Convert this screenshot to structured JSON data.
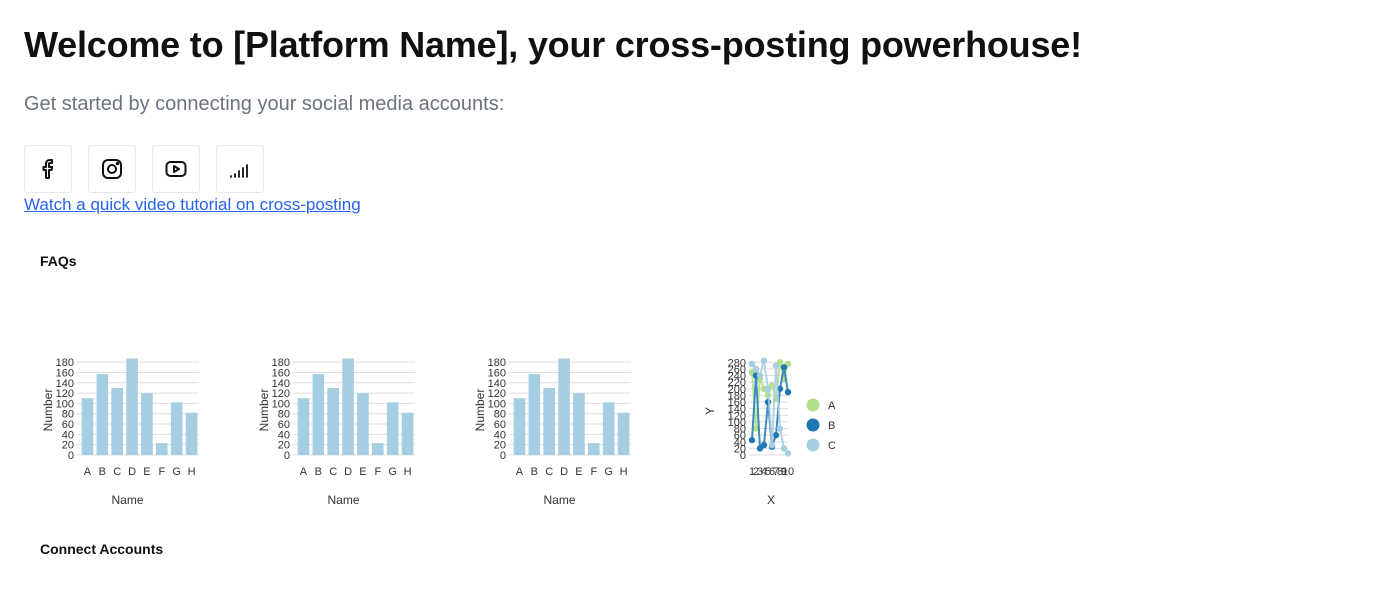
{
  "header": {
    "title": "Welcome to [Platform Name], your cross-posting powerhouse!",
    "subtitle": "Get started by connecting your social media accounts:"
  },
  "socials": [
    {
      "icon": "facebook-icon"
    },
    {
      "icon": "instagram-icon"
    },
    {
      "icon": "youtube-icon"
    },
    {
      "icon": "signal-icon"
    }
  ],
  "tutorial_link": "Watch a quick video tutorial on cross-posting",
  "sections": {
    "faqs": "FAQs",
    "connect": "Connect Accounts"
  },
  "colors": {
    "bar": "#a6cee3",
    "series_a": "#b2df8a",
    "series_b": "#1f78b4",
    "series_c": "#a6cee3"
  },
  "chart_data": [
    {
      "type": "bar",
      "categories": [
        "A",
        "B",
        "C",
        "D",
        "E",
        "F",
        "G",
        "H"
      ],
      "values": [
        110,
        157,
        130,
        187,
        120,
        23,
        102,
        82
      ],
      "xlabel": "Name",
      "ylabel": "Number",
      "yticks": [
        0,
        20,
        40,
        60,
        80,
        100,
        120,
        140,
        160,
        180
      ],
      "ylim": [
        0,
        190
      ],
      "grid": true
    },
    {
      "type": "bar",
      "categories": [
        "A",
        "B",
        "C",
        "D",
        "E",
        "F",
        "G",
        "H"
      ],
      "values": [
        110,
        157,
        130,
        187,
        120,
        23,
        102,
        82
      ],
      "xlabel": "Name",
      "ylabel": "Number",
      "yticks": [
        0,
        20,
        40,
        60,
        80,
        100,
        120,
        140,
        160,
        180
      ],
      "ylim": [
        0,
        190
      ],
      "grid": true
    },
    {
      "type": "bar",
      "categories": [
        "A",
        "B",
        "C",
        "D",
        "E",
        "F",
        "G",
        "H"
      ],
      "values": [
        110,
        157,
        130,
        187,
        120,
        23,
        102,
        82
      ],
      "xlabel": "Name",
      "ylabel": "Number",
      "yticks": [
        0,
        20,
        40,
        60,
        80,
        100,
        120,
        140,
        160,
        180
      ],
      "ylim": [
        0,
        190
      ],
      "grid": true
    },
    {
      "type": "line",
      "xlabel": "X",
      "ylabel": "Y",
      "x": [
        1,
        2,
        3,
        4,
        5,
        6,
        7,
        8,
        9,
        10
      ],
      "xticks": [
        "1",
        "2",
        "3",
        "4",
        "5",
        "6",
        "7",
        "8",
        "9",
        "10"
      ],
      "yticks": [
        0,
        20,
        40,
        60,
        80,
        100,
        120,
        140,
        160,
        180,
        200,
        220,
        240,
        260,
        280
      ],
      "ylim": [
        0,
        290
      ],
      "legend_position": "right",
      "series": [
        {
          "name": "A",
          "values": [
            250,
            80,
            230,
            200,
            180,
            210,
            170,
            280,
            230,
            275
          ]
        },
        {
          "name": "B",
          "values": [
            45,
            240,
            20,
            30,
            160,
            25,
            60,
            200,
            265,
            190
          ]
        },
        {
          "name": "C",
          "values": [
            275,
            260,
            240,
            285,
            200,
            30,
            270,
            80,
            20,
            5
          ]
        }
      ]
    }
  ]
}
